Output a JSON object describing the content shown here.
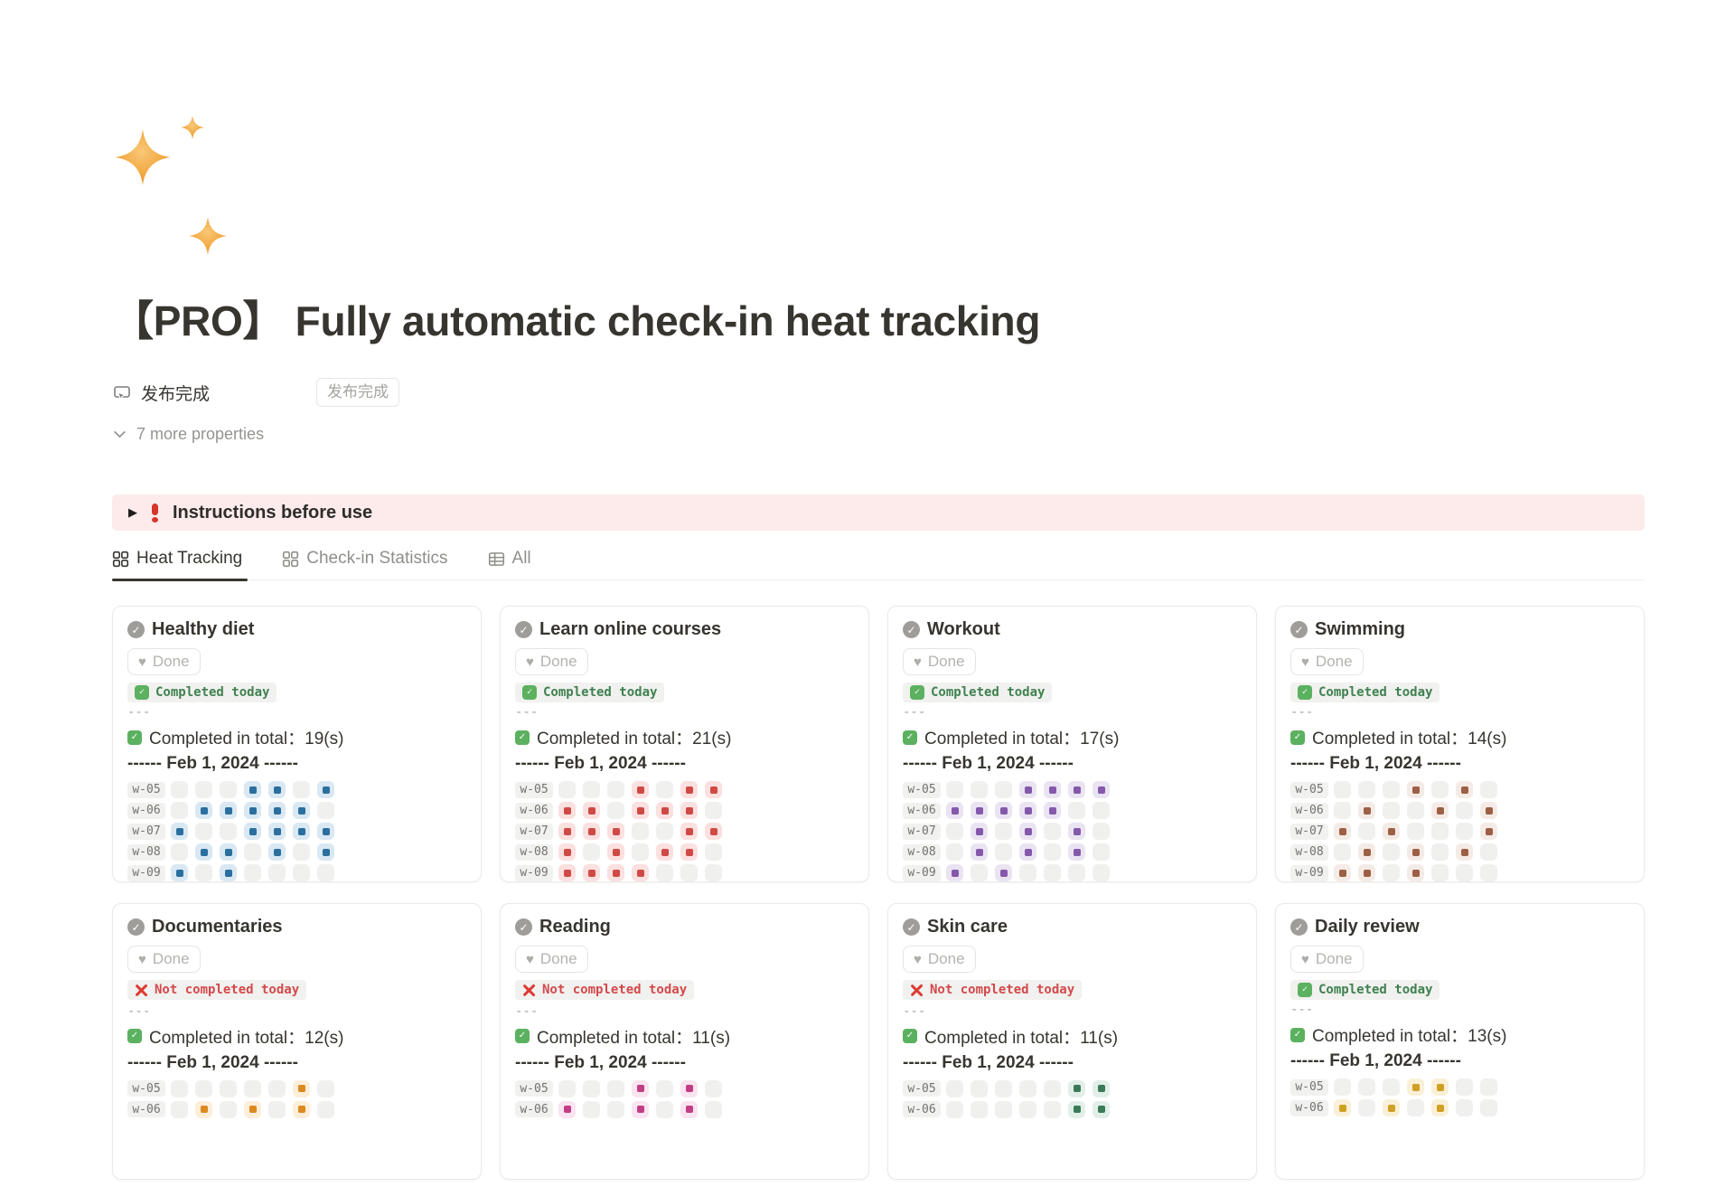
{
  "header": {
    "title": "【PRO】 Fully automatic check-in heat tracking",
    "property": {
      "name": "发布完成",
      "value_button": "发布完成"
    },
    "more_properties_label": "7 more properties"
  },
  "callout": {
    "label": "Instructions before use",
    "bg": "#fdebec"
  },
  "tabs": [
    {
      "label": "Heat Tracking",
      "icon": "gallery",
      "active": true
    },
    {
      "label": "Check-in Statistics",
      "icon": "gallery",
      "active": false
    },
    {
      "label": "All",
      "icon": "table",
      "active": false
    }
  ],
  "card_shared": {
    "done_label": "Done",
    "completed_badge": "Completed today",
    "not_completed_badge": "Not completed today",
    "separator": "---",
    "date_header": "------ Feb 1, 2024 ------",
    "completed_color": "#3f8150",
    "not_completed_color": "#d4494b",
    "empty_cell_color": "#f0f0ee"
  },
  "icons": {
    "page_icon": "sparkles-emoji",
    "property_icon": "button-click-icon",
    "more_properties_icon": "chevron-down-icon",
    "callout_toggle": "play-triangle-icon",
    "callout_icon": "red-exclamation-icon",
    "tab_heat_tracking": "gallery-grid-icon",
    "tab_checkin_statistics": "gallery-grid-icon",
    "tab_all": "table-icon",
    "card_title_icon": "check-circle-icon",
    "done_icon": "heart-icon",
    "completed_icon": "green-check-emoji",
    "not_completed_icon": "red-cross-emoji"
  },
  "cards": [
    {
      "title": "Healthy diet",
      "completed_today": true,
      "total_text": "Completed in total：19(s)",
      "cell_bg": "#d9e8f2",
      "cell_dot": "#2a6f9e",
      "weeks": [
        {
          "label": "w-05",
          "cells": [
            0,
            0,
            0,
            1,
            1,
            0,
            1
          ]
        },
        {
          "label": "w-06",
          "cells": [
            0,
            1,
            1,
            1,
            1,
            1,
            0
          ]
        },
        {
          "label": "w-07",
          "cells": [
            1,
            0,
            0,
            1,
            1,
            1,
            1
          ]
        },
        {
          "label": "w-08",
          "cells": [
            0,
            1,
            1,
            0,
            1,
            0,
            1
          ]
        },
        {
          "label": "w-09",
          "cells": [
            1,
            0,
            1,
            0,
            0,
            0,
            0
          ]
        }
      ]
    },
    {
      "title": "Learn online courses",
      "completed_today": true,
      "total_text": "Completed in total：21(s)",
      "cell_bg": "#fbe0e0",
      "cell_dot": "#d04a45",
      "weeks": [
        {
          "label": "w-05",
          "cells": [
            0,
            0,
            0,
            1,
            0,
            1,
            1
          ]
        },
        {
          "label": "w-06",
          "cells": [
            1,
            1,
            0,
            1,
            1,
            1,
            0
          ]
        },
        {
          "label": "w-07",
          "cells": [
            1,
            1,
            1,
            0,
            0,
            1,
            1
          ]
        },
        {
          "label": "w-08",
          "cells": [
            1,
            0,
            1,
            0,
            1,
            1,
            0
          ]
        },
        {
          "label": "w-09",
          "cells": [
            1,
            1,
            1,
            1,
            0,
            0,
            0
          ]
        }
      ]
    },
    {
      "title": "Workout",
      "completed_today": true,
      "total_text": "Completed in total：17(s)",
      "cell_bg": "#eae4f2",
      "cell_dot": "#8459ab",
      "weeks": [
        {
          "label": "w-05",
          "cells": [
            0,
            0,
            0,
            1,
            1,
            1,
            1
          ]
        },
        {
          "label": "w-06",
          "cells": [
            1,
            1,
            1,
            1,
            1,
            0,
            0
          ]
        },
        {
          "label": "w-07",
          "cells": [
            0,
            1,
            0,
            1,
            0,
            1,
            0
          ]
        },
        {
          "label": "w-08",
          "cells": [
            0,
            1,
            0,
            1,
            0,
            1,
            0
          ]
        },
        {
          "label": "w-09",
          "cells": [
            1,
            0,
            1,
            0,
            0,
            0,
            0
          ]
        }
      ]
    },
    {
      "title": "Swimming",
      "completed_today": true,
      "total_text": "Completed in total：14(s)",
      "cell_bg": "#f5ebe6",
      "cell_dot": "#9d5f45",
      "weeks": [
        {
          "label": "w-05",
          "cells": [
            0,
            0,
            0,
            1,
            0,
            1,
            0
          ]
        },
        {
          "label": "w-06",
          "cells": [
            0,
            1,
            0,
            0,
            1,
            0,
            1
          ]
        },
        {
          "label": "w-07",
          "cells": [
            1,
            0,
            1,
            0,
            0,
            0,
            1
          ]
        },
        {
          "label": "w-08",
          "cells": [
            0,
            1,
            0,
            1,
            0,
            1,
            0
          ]
        },
        {
          "label": "w-09",
          "cells": [
            1,
            1,
            0,
            1,
            0,
            0,
            0
          ]
        }
      ]
    },
    {
      "title": "Documentaries",
      "completed_today": false,
      "total_text": "Completed in total：12(s)",
      "cell_bg": "#fdeeda",
      "cell_dot": "#dc8a20",
      "weeks": [
        {
          "label": "w-05",
          "cells": [
            0,
            0,
            0,
            0,
            0,
            1,
            0
          ]
        },
        {
          "label": "w-06",
          "cells": [
            0,
            1,
            0,
            1,
            0,
            1,
            0
          ]
        }
      ]
    },
    {
      "title": "Reading",
      "completed_today": false,
      "total_text": "Completed in total：11(s)",
      "cell_bg": "#f9e4ef",
      "cell_dot": "#c13e85",
      "weeks": [
        {
          "label": "w-05",
          "cells": [
            0,
            0,
            0,
            1,
            0,
            1,
            0
          ]
        },
        {
          "label": "w-06",
          "cells": [
            1,
            0,
            0,
            1,
            0,
            1,
            0
          ]
        }
      ]
    },
    {
      "title": "Skin care",
      "completed_today": false,
      "total_text": "Completed in total：11(s)",
      "cell_bg": "#e2efe8",
      "cell_dot": "#3a7a58",
      "weeks": [
        {
          "label": "w-05",
          "cells": [
            0,
            0,
            0,
            0,
            0,
            1,
            1
          ]
        },
        {
          "label": "w-06",
          "cells": [
            0,
            0,
            0,
            0,
            0,
            1,
            1
          ]
        }
      ]
    },
    {
      "title": "Daily review",
      "completed_today": true,
      "total_text": "Completed in total：13(s)",
      "cell_bg": "#faf0d7",
      "cell_dot": "#cfa023",
      "weeks": [
        {
          "label": "w-05",
          "cells": [
            0,
            0,
            0,
            1,
            1,
            0,
            0
          ]
        },
        {
          "label": "w-06",
          "cells": [
            1,
            0,
            1,
            0,
            1,
            0,
            0
          ]
        }
      ]
    }
  ]
}
